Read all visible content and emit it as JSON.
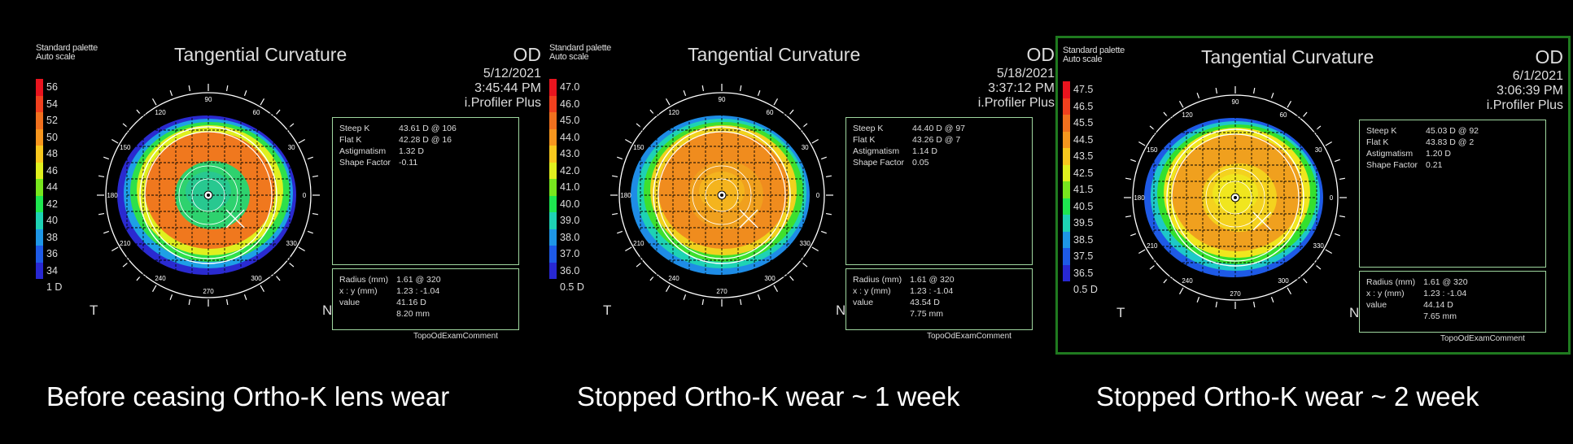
{
  "panels": [
    {
      "palette": "Standard palette",
      "autoscale": "Auto scale",
      "title": "Tangential Curvature",
      "eye": "OD",
      "date": "5/12/2021",
      "time": "3:45:44 PM",
      "device": "i.Profiler Plus",
      "scale": [
        {
          "v": "56",
          "c": "#e8141e"
        },
        {
          "v": "54",
          "c": "#f0401e"
        },
        {
          "v": "52",
          "c": "#f0701e"
        },
        {
          "v": "50",
          "c": "#f6961e"
        },
        {
          "v": "48",
          "c": "#f8c81e"
        },
        {
          "v": "46",
          "c": "#e0f01e"
        },
        {
          "v": "44",
          "c": "#78e61e"
        },
        {
          "v": "42",
          "c": "#1ee650"
        },
        {
          "v": "40",
          "c": "#1ed2b4"
        },
        {
          "v": "38",
          "c": "#1e96e6"
        },
        {
          "v": "36",
          "c": "#1e5ae6"
        },
        {
          "v": "34",
          "c": "#2828d2"
        },
        {
          "v": "1 D",
          "c": "#000000"
        }
      ],
      "stats": {
        "steep_k_label": "Steep K",
        "steep_k": "43.61 D @ 106",
        "flat_k_label": "Flat K",
        "flat_k": "42.28 D @ 16",
        "astig_label": "Astigmatism",
        "astig": "1.32 D",
        "shape_label": "Shape Factor",
        "shape": "-0.11"
      },
      "point": {
        "radius_label": "Radius (mm)",
        "radius": "1.61 @ 320",
        "xy_label": "x : y (mm)",
        "xy": "1.23 : -1.04",
        "value_label": "value",
        "value": "41.16 D",
        "mm": "8.20 mm"
      },
      "comment": "TopoOdExamComment",
      "left_label": "T",
      "right_label": "N",
      "caption": "Before ceasing Ortho-K lens wear",
      "selected": false,
      "colors": {
        "outer": "#2a2ad0",
        "ring2": "#1ea0e6",
        "ring3": "#2ee04a",
        "ring4": "#dff01e",
        "mid": "#f0781e",
        "center": "#2ed26e",
        "inner": "#28c890"
      }
    },
    {
      "palette": "Standard palette",
      "autoscale": "Auto scale",
      "title": "Tangential Curvature",
      "eye": "OD",
      "date": "5/18/2021",
      "time": "3:37:12 PM",
      "device": "i.Profiler Plus",
      "scale": [
        {
          "v": "47.0",
          "c": "#e8141e"
        },
        {
          "v": "46.0",
          "c": "#f0401e"
        },
        {
          "v": "45.0",
          "c": "#f0701e"
        },
        {
          "v": "44.0",
          "c": "#f6961e"
        },
        {
          "v": "43.0",
          "c": "#f8c81e"
        },
        {
          "v": "42.0",
          "c": "#e0f01e"
        },
        {
          "v": "41.0",
          "c": "#78e61e"
        },
        {
          "v": "40.0",
          "c": "#1ee650"
        },
        {
          "v": "39.0",
          "c": "#1ed2b4"
        },
        {
          "v": "38.0",
          "c": "#1e96e6"
        },
        {
          "v": "37.0",
          "c": "#1e5ae6"
        },
        {
          "v": "36.0",
          "c": "#2828d2"
        },
        {
          "v": "0.5 D",
          "c": "#000000"
        }
      ],
      "stats": {
        "steep_k_label": "Steep K",
        "steep_k": "44.40 D @ 97",
        "flat_k_label": "Flat K",
        "flat_k": "43.26 D @ 7",
        "astig_label": "Astigmatism",
        "astig": "1.14 D",
        "shape_label": "Shape Factor",
        "shape": "0.05"
      },
      "point": {
        "radius_label": "Radius (mm)",
        "radius": "1.61 @ 320",
        "xy_label": "x : y (mm)",
        "xy": "1.23 : -1.04",
        "value_label": "value",
        "value": "43.54 D",
        "mm": "7.75 mm"
      },
      "comment": "TopoOdExamComment",
      "left_label": "T",
      "right_label": "N",
      "caption": "Stopped Ortho-K wear ~ 1 week",
      "selected": false,
      "colors": {
        "outer": "#1e8ce6",
        "ring2": "#1ed2b4",
        "ring3": "#3ee02e",
        "ring4": "#f0d21e",
        "mid": "#f08c1e",
        "center": "#f0a01e",
        "inner": "#f4b41e"
      }
    },
    {
      "palette": "Standard palette",
      "autoscale": "Auto scale",
      "title": "Tangential Curvature",
      "eye": "OD",
      "date": "6/1/2021",
      "time": "3:06:39 PM",
      "device": "i.Profiler Plus",
      "scale": [
        {
          "v": "47.5",
          "c": "#e8141e"
        },
        {
          "v": "46.5",
          "c": "#f0401e"
        },
        {
          "v": "45.5",
          "c": "#f0701e"
        },
        {
          "v": "44.5",
          "c": "#f6961e"
        },
        {
          "v": "43.5",
          "c": "#f8c81e"
        },
        {
          "v": "42.5",
          "c": "#e0f01e"
        },
        {
          "v": "41.5",
          "c": "#78e61e"
        },
        {
          "v": "40.5",
          "c": "#1ee650"
        },
        {
          "v": "39.5",
          "c": "#1ed2b4"
        },
        {
          "v": "38.5",
          "c": "#1e96e6"
        },
        {
          "v": "37.5",
          "c": "#1e5ae6"
        },
        {
          "v": "36.5",
          "c": "#2828d2"
        },
        {
          "v": "0.5 D",
          "c": "#000000"
        }
      ],
      "stats": {
        "steep_k_label": "Steep K",
        "steep_k": "45.03 D @ 92",
        "flat_k_label": "Flat K",
        "flat_k": "43.83 D @ 2",
        "astig_label": "Astigmatism",
        "astig": "1.20 D",
        "shape_label": "Shape Factor",
        "shape": "0.21"
      },
      "point": {
        "radius_label": "Radius (mm)",
        "radius": "1.61 @ 320",
        "xy_label": "x : y (mm)",
        "xy": "1.23 : -1.04",
        "value_label": "value",
        "value": "44.14 D",
        "mm": "7.65 mm"
      },
      "comment": "TopoOdExamComment",
      "left_label": "T",
      "right_label": "N",
      "caption": "Stopped Ortho-K wear ~ 2 week",
      "selected": true,
      "colors": {
        "outer": "#1e5ae6",
        "ring2": "#1ec8c8",
        "ring3": "#34e02e",
        "ring4": "#f0e61e",
        "mid": "#f0a01e",
        "center": "#f4d21e",
        "inner": "#f0e61e"
      }
    }
  ],
  "axis_ticks": [
    "90",
    "60",
    "30",
    "0",
    "330",
    "300",
    "270",
    "240",
    "210",
    "180",
    "150",
    "120"
  ]
}
